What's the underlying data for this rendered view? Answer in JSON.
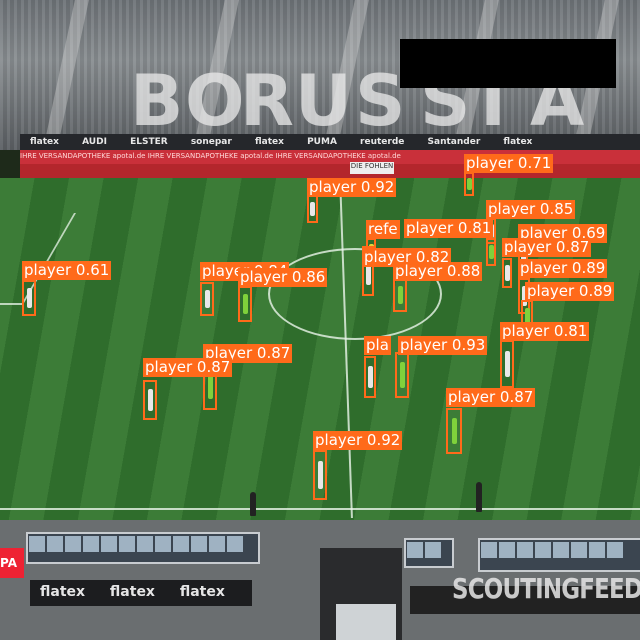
{
  "stands": {
    "letters": [
      "B",
      "O",
      "R",
      "U",
      "S",
      "S",
      "I",
      "A"
    ]
  },
  "ads": {
    "top_banner": [
      "flatex",
      "AUDI",
      "ELSTER",
      "sonepar",
      "flatex",
      "PUMA",
      "reuterde",
      "Santander",
      "flatex"
    ],
    "red_banner": "IHRE VERSANDAPOTHEKE   apotal.de   IHRE VERSANDAPOTHEKE   apotal.de   IHRE VERSANDAPOTHEKE   apotal.de",
    "sign": "DIE FOHLEN",
    "bottom_boards": [
      "flatex",
      "flatex",
      "flatex"
    ],
    "left_logo": "PA"
  },
  "watermark": "SCOUTINGFEED",
  "colors": {
    "box": "#ff6a1a",
    "team_white": "#e8e8e8",
    "team_green": "#7fd13b"
  },
  "detections": [
    {
      "label": "player 0.71",
      "kit": "green"
    },
    {
      "label": "player 0.92",
      "kit": "white"
    },
    {
      "label": "player 0.85",
      "kit": "white"
    },
    {
      "label": "refe",
      "kit": "yellow"
    },
    {
      "label": "player 0.81",
      "kit": "green"
    },
    {
      "label": "player 0.69",
      "kit": "white"
    },
    {
      "label": "player 0.87",
      "kit": "white"
    },
    {
      "label": "player 0.61",
      "kit": "white"
    },
    {
      "label": "player 0.82",
      "kit": "white"
    },
    {
      "label": "player 0.88",
      "kit": "green"
    },
    {
      "label": "player 0.89",
      "kit": "white"
    },
    {
      "label": "player 0.89",
      "kit": "green"
    },
    {
      "label": "player 0.84",
      "kit": "white"
    },
    {
      "label": "player 0.86",
      "kit": "green"
    },
    {
      "label": "player 0.81",
      "kit": "white"
    },
    {
      "label": "player 0.87",
      "kit": "green"
    },
    {
      "label": "player 0.87",
      "kit": "white"
    },
    {
      "label": "pla",
      "kit": "white"
    },
    {
      "label": "player 0.93",
      "kit": "green"
    },
    {
      "label": "player 0.87",
      "kit": "green"
    },
    {
      "label": "player 0.92",
      "kit": "white"
    }
  ]
}
